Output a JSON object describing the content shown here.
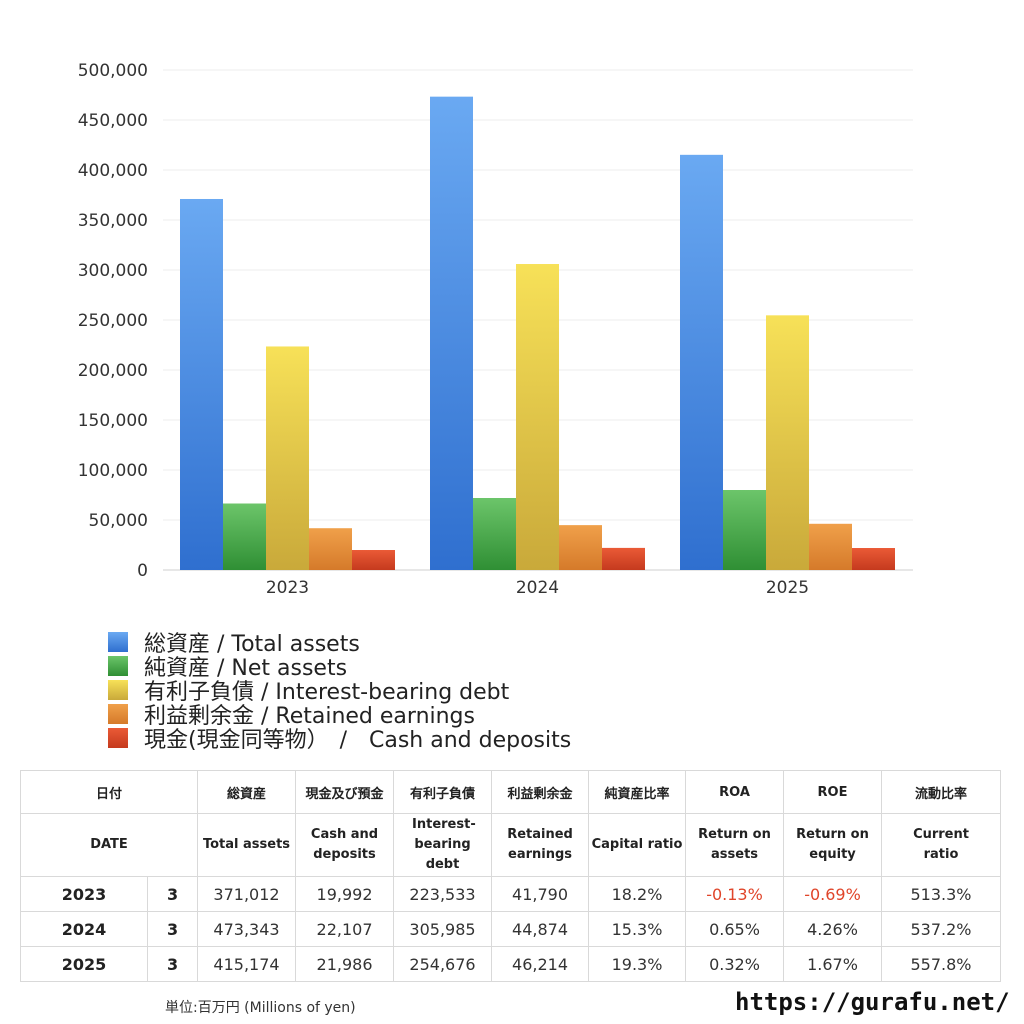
{
  "chart_data": {
    "type": "bar",
    "categories": [
      "2023",
      "2024",
      "2025"
    ],
    "ylim": [
      0,
      500000
    ],
    "yticks": [
      "0",
      "50,000",
      "100,000",
      "150,000",
      "200,000",
      "250,000",
      "300,000",
      "350,000",
      "400,000",
      "450,000",
      "500,000"
    ],
    "ytick_values": [
      0,
      50000,
      100000,
      150000,
      200000,
      250000,
      300000,
      350000,
      400000,
      450000,
      500000
    ],
    "grid": true,
    "legend_position": "bottom-left",
    "series": [
      {
        "name": "総資産 / Total assets",
        "color": "#4a8fe0",
        "values": [
          371012,
          473343,
          415174
        ]
      },
      {
        "name": "純資産 / Net assets",
        "color": "#4aa84a",
        "values": [
          66500,
          72000,
          80000
        ]
      },
      {
        "name": "有利子負債 / Interest-bearing debt",
        "color": "#e8d24a",
        "values": [
          223533,
          305985,
          254676
        ]
      },
      {
        "name": "利益剰余金 / Retained earnings",
        "color": "#e5913a",
        "values": [
          41790,
          44874,
          46214
        ]
      },
      {
        "name": "現金(現金同等物）　/　Cash and deposits",
        "color": "#dc4a2a",
        "values": [
          19992,
          22107,
          21986
        ]
      }
    ]
  },
  "table": {
    "header_jp": [
      "日付",
      "総資産",
      "現金及び預金",
      "有利子負債",
      "利益剰余金",
      "純資産比率",
      "ROA",
      "ROE",
      "流動比率"
    ],
    "header_en": [
      "DATE",
      "Total assets",
      "Cash and deposits",
      "Interest-bearing debt",
      "Retained earnings",
      "Capital ratio",
      "Return on assets",
      "Return on equity",
      "Current ratio"
    ],
    "rows": [
      {
        "year": "2023",
        "month": "3",
        "total_assets": "371,012",
        "cash": "19,992",
        "debt": "223,533",
        "retained": "41,790",
        "capital_ratio": "18.2%",
        "roa": "-0.13%",
        "roe": "-0.69%",
        "current_ratio": "513.3%"
      },
      {
        "year": "2024",
        "month": "3",
        "total_assets": "473,343",
        "cash": "22,107",
        "debt": "305,985",
        "retained": "44,874",
        "capital_ratio": "15.3%",
        "roa": "0.65%",
        "roe": "4.26%",
        "current_ratio": "537.2%"
      },
      {
        "year": "2025",
        "month": "3",
        "total_assets": "415,174",
        "cash": "21,986",
        "debt": "254,676",
        "retained": "46,214",
        "capital_ratio": "19.3%",
        "roa": "0.32%",
        "roe": "1.67%",
        "current_ratio": "557.8%"
      }
    ]
  },
  "footer": {
    "unit": "単位:百万円 (Millions of yen)",
    "site": "https://gurafu.net/"
  }
}
